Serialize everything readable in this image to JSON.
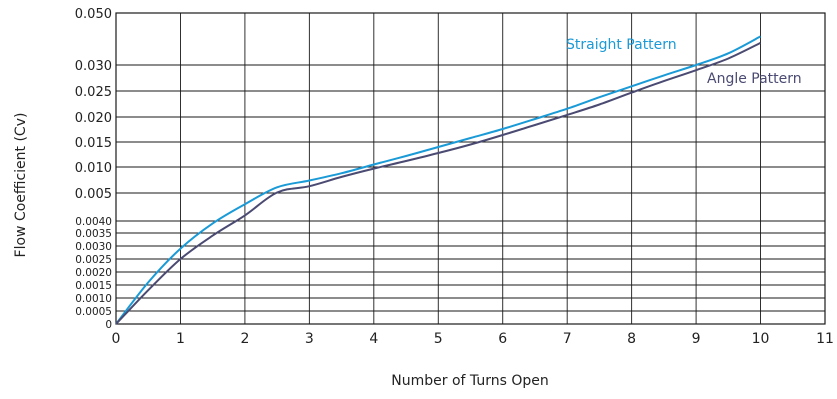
{
  "chart_data": {
    "type": "line",
    "title": "",
    "xlabel": "Number of Turns Open",
    "ylabel": "Flow Coefficient (Cv)",
    "xlim": [
      0,
      11
    ],
    "x_ticks": [
      "0",
      "1",
      "2",
      "3",
      "4",
      "5",
      "6",
      "7",
      "8",
      "9",
      "10",
      "11"
    ],
    "y_scale": "piecewise",
    "y_ticks": [
      "0",
      "0.0005",
      "0.0010",
      "0.0015",
      "0.0020",
      "0.0025",
      "0.0030",
      "0.0035",
      "0.0040",
      "0.005",
      "0.010",
      "0.015",
      "0.020",
      "0.025",
      "0.030",
      "0.050"
    ],
    "grid": true,
    "series": [
      {
        "name": "Straight Pattern",
        "color": "#1a9ad6",
        "x": [
          0,
          0.5,
          1,
          1.5,
          2,
          2.5,
          3,
          3.5,
          4,
          4.5,
          5,
          5.5,
          6,
          6.5,
          7,
          7.5,
          8,
          8.5,
          9,
          9.5,
          10
        ],
        "y": [
          0,
          0.0016,
          0.0029,
          0.0039,
          0.0046,
          0.0061,
          0.0074,
          0.0088,
          0.0105,
          0.0122,
          0.014,
          0.0158,
          0.0176,
          0.0196,
          0.0216,
          0.0238,
          0.0259,
          0.028,
          0.03,
          0.0345,
          0.041
        ]
      },
      {
        "name": "Angle Pattern",
        "color": "#4a4a72",
        "x": [
          0,
          0.5,
          1,
          1.5,
          2,
          2.5,
          3,
          3.5,
          4,
          4.5,
          5,
          5.5,
          6,
          6.5,
          7,
          7.5,
          8,
          8.5,
          9,
          9.5,
          10
        ],
        "y": [
          0,
          0.0013,
          0.0025,
          0.0034,
          0.0042,
          0.0051,
          0.0063,
          0.0081,
          0.0097,
          0.0112,
          0.0128,
          0.0145,
          0.0164,
          0.0184,
          0.0204,
          0.0224,
          0.0247,
          0.0269,
          0.029,
          0.0325,
          0.0385
        ]
      }
    ]
  }
}
